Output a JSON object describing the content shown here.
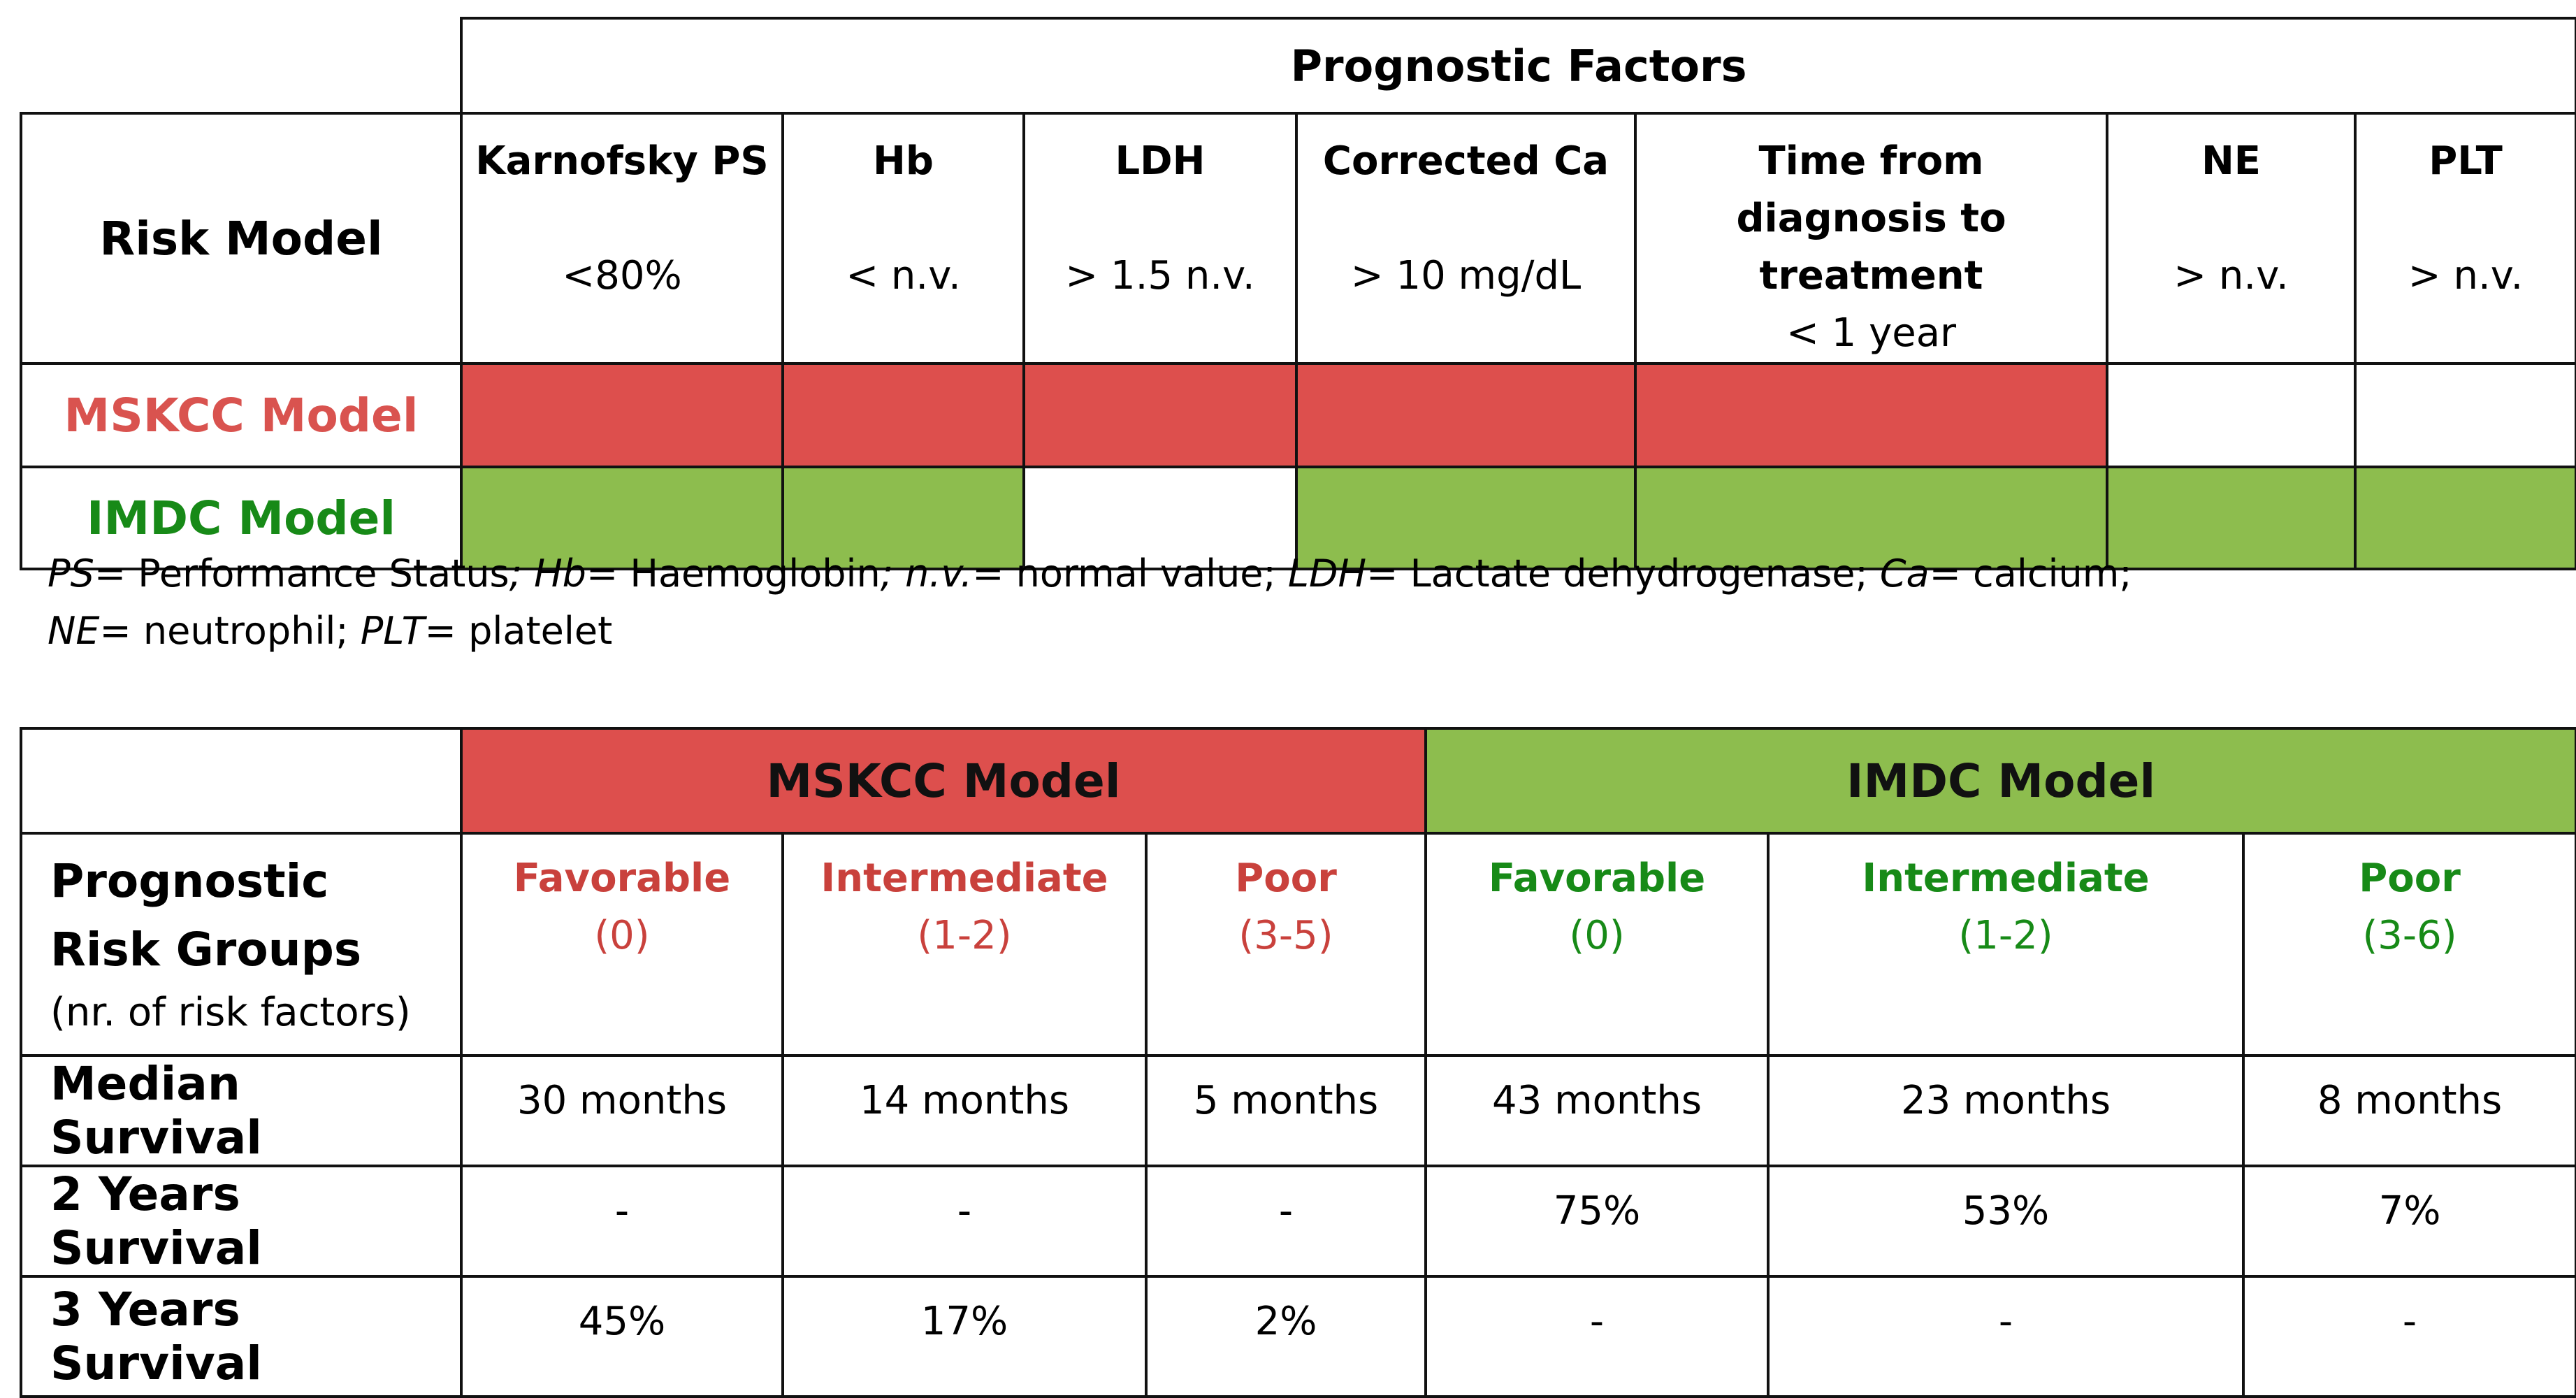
{
  "top_table": {
    "header": "Prognostic Factors",
    "risk_model_label": "Risk Model",
    "factors": [
      {
        "name": "Karnofsky PS",
        "criterion": "<80%"
      },
      {
        "name": "Hb",
        "criterion": "< n.v."
      },
      {
        "name": "LDH",
        "criterion": "> 1.5 n.v."
      },
      {
        "name": "Corrected Ca",
        "criterion": "> 10 mg/dL"
      },
      {
        "name": "Time from diagnosis to treatment",
        "criterion": "< 1 year"
      },
      {
        "name": "NE",
        "criterion": "> n.v."
      },
      {
        "name": "PLT",
        "criterion": "> n.v."
      }
    ],
    "models": [
      {
        "name": "MSKCC Model",
        "color": "#dd4f4d",
        "included": [
          true,
          true,
          true,
          true,
          true,
          false,
          false
        ]
      },
      {
        "name": "IMDC Model",
        "color": "#8dbd4e",
        "included": [
          true,
          true,
          false,
          true,
          true,
          true,
          true
        ]
      }
    ]
  },
  "footnote": {
    "line1": [
      {
        "abbr": "PS",
        "def": "= Performance Status"
      },
      {
        "abbr": "Hb",
        "def": "= Haemoglobin"
      },
      {
        "abbr": "n.v.",
        "def": "= normal value"
      },
      {
        "abbr": "LDH",
        "def": "= Lactate dehydrogenase"
      },
      {
        "abbr": "Ca",
        "def": "= calcium"
      }
    ],
    "line2": [
      {
        "abbr": "NE",
        "def": "= neutrophil"
      },
      {
        "abbr": "PLT",
        "def": "= platelet"
      }
    ]
  },
  "bottom_table": {
    "groups": [
      {
        "name": "MSKCC Model",
        "color": "#dd4f4d"
      },
      {
        "name": "IMDC Model",
        "color": "#8dbd4e"
      }
    ],
    "risk_groups_label": {
      "line1": "Prognostic",
      "line2": "Risk Groups",
      "line3": "(nr. of  risk factors)"
    },
    "risk_groups": [
      {
        "name": "Favorable",
        "count": "(0)",
        "model": "MSKCC"
      },
      {
        "name": "Intermediate",
        "count": "(1-2)",
        "model": "MSKCC"
      },
      {
        "name": "Poor",
        "count": "(3-5)",
        "model": "MSKCC"
      },
      {
        "name": "Favorable",
        "count": "(0)",
        "model": "IMDC"
      },
      {
        "name": "Intermediate",
        "count": "(1-2)",
        "model": "IMDC"
      },
      {
        "name": "Poor",
        "count": "(3-6)",
        "model": "IMDC"
      }
    ],
    "rows": [
      {
        "label": "Median Survival",
        "values": [
          "30 months",
          "14 months",
          "5 months",
          "43 months",
          "23 months",
          "8 months"
        ]
      },
      {
        "label": "2 Years Survival",
        "values": [
          "-",
          "-",
          "-",
          "75%",
          "53%",
          "7%"
        ]
      },
      {
        "label": "3 Years Survival",
        "values": [
          "45%",
          "17%",
          "2%",
          "-",
          "-",
          "-"
        ]
      }
    ]
  }
}
